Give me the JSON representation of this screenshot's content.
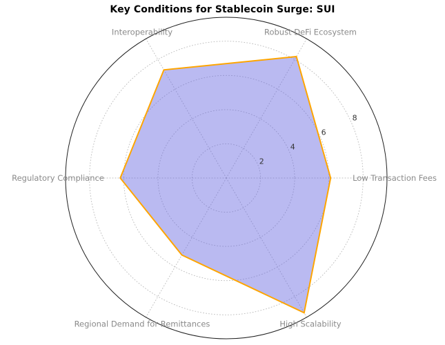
{
  "title": "Key Conditions for Stablecoin Surge: SUI",
  "chart_data": {
    "type": "radar",
    "title": "Key Conditions for Stablecoin Surge: SUI",
    "categories": [
      "Low Transaction Fees",
      "Robust DeFi Ecosystem",
      "Interoperability",
      "Regulatory Compliance",
      "Regional Demand for Remittances",
      "High Scalability"
    ],
    "series": [
      {
        "name": "SUI",
        "values": [
          6.1,
          8.2,
          7.3,
          6.2,
          5.2,
          9.1
        ]
      }
    ],
    "angles_deg": [
      0,
      60,
      120,
      180,
      240,
      300
    ],
    "r_ticks": [
      2,
      4,
      6,
      8
    ],
    "r_tick_labels": [
      "2",
      "4",
      "6",
      "8"
    ],
    "r_range": [
      0,
      9.4
    ],
    "grid": "dotted",
    "legend": "none",
    "colors": {
      "fill": "#6666e0",
      "fill_opacity": 0.45,
      "edge": "#ffa500",
      "grid": "#b8b8b8",
      "outline": "#1f1f1f",
      "category_label": "#8a8a8a",
      "tick_label": "#333333",
      "title": "#000000"
    }
  }
}
